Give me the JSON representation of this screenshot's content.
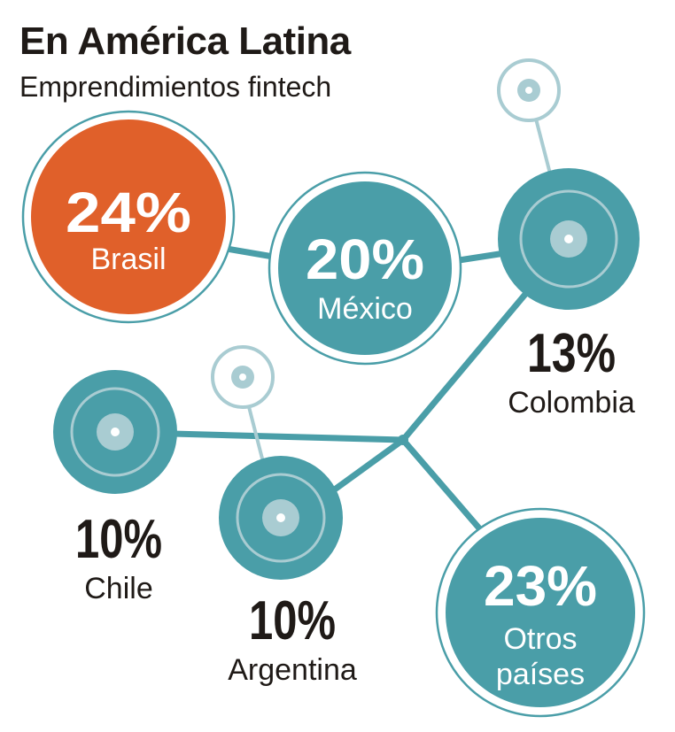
{
  "header": {
    "title": "En América Latina",
    "subtitle": "Emprendimientos fintech"
  },
  "colors": {
    "teal": "#4a9ea8",
    "orange": "#e0602a",
    "light_teal": "#a9ccd2",
    "text_dark": "#1f1a17",
    "white": "#ffffff"
  },
  "chart_data": {
    "type": "bubble-network",
    "title": "En América Latina",
    "subtitle": "Emprendimientos fintech",
    "categories": [
      "Brasil",
      "México",
      "Colombia",
      "Chile",
      "Argentina",
      "Otros países"
    ],
    "values": [
      24,
      20,
      13,
      10,
      10,
      23
    ],
    "labels": [
      "24%",
      "20%",
      "13%",
      "10%",
      "10%",
      "23%"
    ],
    "highlight": "Brasil",
    "unit": "%"
  }
}
